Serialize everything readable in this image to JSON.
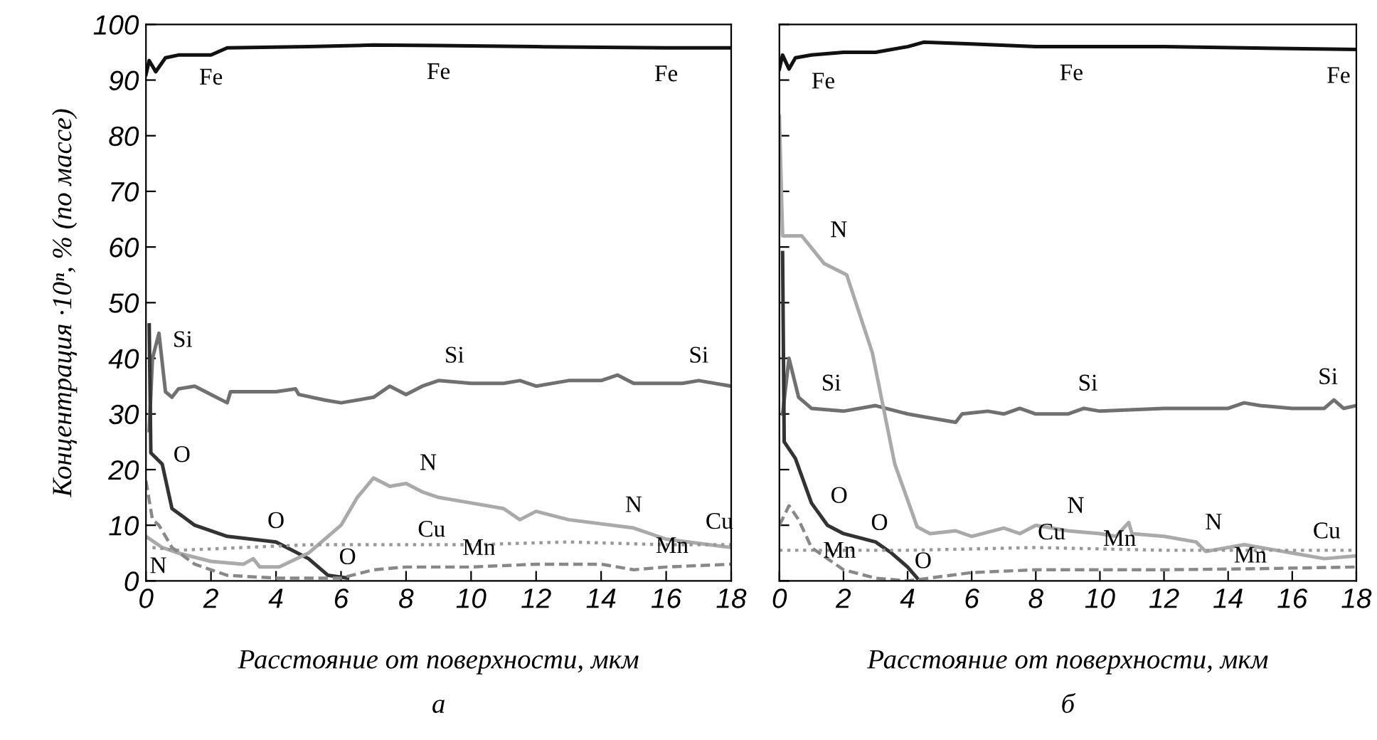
{
  "chart_data": [
    {
      "type": "line",
      "title": "а",
      "xlabel": "Расстояние от поверхности, мкм",
      "ylabel": "Концентрация ·10ⁿ, % (по массе)",
      "xlim": [
        0,
        18
      ],
      "ylim": [
        0,
        100
      ],
      "xticks": [
        0,
        2,
        4,
        6,
        8,
        10,
        12,
        14,
        16,
        18
      ],
      "yticks": [
        0,
        10,
        20,
        30,
        40,
        50,
        60,
        70,
        80,
        90,
        100
      ],
      "grid": false,
      "legend": false,
      "series": [
        {
          "color": "#111111",
          "line_style": "solid",
          "x": [
            0,
            0.1,
            0.3,
            0.6,
            1,
            2,
            2.5,
            5,
            7,
            9,
            12,
            16,
            18
          ],
          "values": [
            91,
            93.5,
            91.5,
            94,
            94.5,
            94.5,
            95.8,
            96,
            96.3,
            96.2,
            96,
            95.8,
            95.8
          ]
        },
        {
          "color": "#707070",
          "line_style": "solid",
          "x": [
            0.1,
            0.2,
            0.4,
            0.6,
            0.8,
            1,
            1.5,
            2,
            2.5,
            2.6,
            3,
            4,
            4.6,
            4.7,
            5.5,
            6,
            7,
            7.5,
            8,
            8.5,
            9,
            10,
            11,
            11.5,
            12,
            13,
            14,
            14.5,
            15,
            16.5,
            17,
            18
          ],
          "values": [
            27,
            40,
            44.5,
            34,
            33,
            34.5,
            35,
            33.5,
            32,
            34,
            34,
            34,
            34.5,
            33.5,
            32.5,
            32,
            33,
            35,
            33.5,
            35,
            36,
            35.5,
            35.5,
            36,
            35,
            36,
            36,
            37,
            35.5,
            35.5,
            36,
            35
          ]
        },
        {
          "color": "#333333",
          "line_style": "solid",
          "x": [
            0.1,
            0.15,
            0.5,
            0.8,
            1.5,
            2.5,
            4,
            5,
            5.6,
            6.2
          ],
          "values": [
            46,
            23,
            21,
            13,
            10,
            8,
            7,
            4,
            1,
            0.5
          ]
        },
        {
          "color": "#aaaaaa",
          "line_style": "solid",
          "x": [
            0,
            0.5,
            1,
            2,
            3,
            3.3,
            3.5,
            4.1,
            5,
            6,
            6.5,
            7,
            7.5,
            8,
            8.5,
            9,
            10,
            11,
            11.5,
            12,
            13,
            15,
            16,
            18
          ],
          "values": [
            8,
            6,
            5,
            3.5,
            3,
            4,
            2.5,
            2.5,
            5,
            10,
            15,
            18.5,
            17,
            17.5,
            16,
            15,
            14,
            13,
            11,
            12.5,
            11,
            9.5,
            7.5,
            6
          ]
        },
        {
          "color": "#999999",
          "line_style": "dotted",
          "x": [
            0.2,
            1,
            3,
            5,
            10,
            13,
            16,
            18
          ],
          "values": [
            6,
            5.5,
            6,
            6.5,
            6.5,
            7,
            6.5,
            6.5
          ]
        },
        {
          "color": "#888888",
          "line_style": "dashed",
          "x": [
            0,
            0.2,
            0.4,
            0.8,
            1.5,
            2.5,
            4,
            6,
            7,
            8,
            10,
            12,
            14,
            15,
            16,
            18
          ],
          "values": [
            18,
            11,
            10,
            6,
            3,
            1,
            0.5,
            0.5,
            2,
            2.5,
            2.5,
            3,
            3,
            2,
            2.5,
            3
          ]
        }
      ],
      "annotations": [
        {
          "text": "Fe",
          "x": 2,
          "y": 94.5
        },
        {
          "text": "Fe",
          "x": 9,
          "y": 96.2
        },
        {
          "text": "Fe",
          "x": 16,
          "y": 95.8
        },
        {
          "text": "Si",
          "x": 0.4,
          "y": 44.5
        },
        {
          "text": "Si",
          "x": 9,
          "y": 36
        },
        {
          "text": "Si",
          "x": 17,
          "y": 36
        },
        {
          "text": "O",
          "x": 0.5,
          "y": 21
        },
        {
          "text": "O",
          "x": 4,
          "y": 7
        },
        {
          "text": "O",
          "x": 6.2,
          "y": 0.5
        },
        {
          "text": "N",
          "x": 8.5,
          "y": 16
        },
        {
          "text": "N",
          "x": 15,
          "y": 9.5
        },
        {
          "text": "N",
          "x": 0.5,
          "y": 6
        },
        {
          "text": "Cu",
          "x": 10,
          "y": 6.5
        },
        {
          "text": "Cu",
          "x": 18,
          "y": 6.5
        },
        {
          "text": "Mn",
          "x": 10,
          "y": 2.5
        },
        {
          "text": "Mn",
          "x": 16,
          "y": 2.5
        }
      ]
    },
    {
      "type": "line",
      "title": "б",
      "xlabel": "Расстояние от поверхности, мкм",
      "xlim": [
        0,
        18
      ],
      "ylim": [
        0,
        100
      ],
      "xticks": [
        0,
        2,
        4,
        6,
        8,
        10,
        12,
        14,
        16,
        18
      ],
      "yticks": [
        {
          "value": 0,
          "label": null
        },
        {
          "value": 10,
          "label": null
        },
        {
          "value": 20,
          "label": null
        },
        {
          "value": 30,
          "label": null
        },
        {
          "value": 40,
          "label": null
        },
        {
          "value": 50,
          "label": null
        },
        {
          "value": 60,
          "label": null
        },
        {
          "value": 70,
          "label": null
        },
        {
          "value": 80,
          "label": null
        },
        {
          "value": 90,
          "label": null
        },
        {
          "value": 100,
          "label": null
        }
      ],
      "tick_labels": "x",
      "grid": false,
      "legend": false,
      "series": [
        {
          "color": "#111111",
          "line_style": "solid",
          "x": [
            0,
            0.1,
            0.3,
            0.5,
            1,
            2,
            3,
            4,
            4.5,
            6,
            8,
            12,
            18
          ],
          "values": [
            92,
            94.5,
            92,
            94,
            94.5,
            95,
            95,
            96,
            96.8,
            96.5,
            96,
            96,
            95.5
          ]
        },
        {
          "color": "#707070",
          "line_style": "solid",
          "x": [
            0.1,
            0.3,
            0.6,
            1,
            2,
            3,
            4,
            4.5,
            5.5,
            5.7,
            6.5,
            7,
            7.5,
            8,
            9,
            9.5,
            10,
            12,
            14,
            14.5,
            15,
            16,
            17,
            17.3,
            17.6,
            18
          ],
          "values": [
            30,
            40,
            33,
            31,
            30.5,
            31.5,
            30,
            29.5,
            28.5,
            30,
            30.5,
            30,
            31,
            30,
            30,
            31,
            30.5,
            31,
            31,
            32,
            31.5,
            31,
            31,
            32.5,
            31,
            31.5
          ]
        },
        {
          "color": "#333333",
          "line_style": "solid",
          "x": [
            0.1,
            0.15,
            0.5,
            1,
            1.5,
            2,
            3,
            3.5,
            4,
            4.3
          ],
          "values": [
            59,
            25,
            22,
            14,
            10,
            8.5,
            7,
            5,
            2.5,
            0.5
          ]
        },
        {
          "color": "#aaaaaa",
          "line_style": "solid",
          "x": [
            0,
            0.1,
            0.7,
            1.4,
            2.1,
            2.9,
            3.6,
            4.3,
            4.7,
            5.5,
            6,
            7,
            7.5,
            8,
            9,
            10,
            10.5,
            10.9,
            11,
            12,
            13,
            13.3,
            14.5,
            16,
            17,
            18
          ],
          "values": [
            83.5,
            62,
            62,
            57,
            55,
            41,
            21,
            9.7,
            8.5,
            9,
            8,
            9.5,
            8.5,
            10,
            9,
            8.5,
            8,
            10.5,
            8.5,
            8,
            7,
            5.3,
            6.5,
            5,
            4,
            4.5
          ]
        },
        {
          "color": "#999999",
          "line_style": "dotted",
          "x": [
            0,
            4,
            8,
            12,
            18
          ],
          "values": [
            5.5,
            5.5,
            6,
            5.5,
            5.5
          ]
        },
        {
          "color": "#888888",
          "line_style": "dashed",
          "x": [
            0,
            0.3,
            0.6,
            1,
            2,
            3,
            4,
            6,
            8,
            10,
            12,
            15,
            18
          ],
          "values": [
            10,
            13.5,
            11,
            6,
            2,
            0.5,
            0,
            1.5,
            2,
            2,
            2,
            2.2,
            2.5
          ]
        }
      ],
      "annotations": [
        {
          "text": "Fe",
          "x": 1,
          "y": 94.5
        },
        {
          "text": "Fe",
          "x": 8,
          "y": 96
        },
        {
          "text": "Fe",
          "x": 18,
          "y": 95.5
        },
        {
          "text": "N",
          "x": 2.1,
          "y": 55
        },
        {
          "text": "Si",
          "x": 1,
          "y": 31
        },
        {
          "text": "Si",
          "x": 9.5,
          "y": 31
        },
        {
          "text": "Si",
          "x": 17.3,
          "y": 32.5
        },
        {
          "text": "O",
          "x": 1,
          "y": 14
        },
        {
          "text": "O",
          "x": 3,
          "y": 7
        },
        {
          "text": "O",
          "x": 4.3,
          "y": 0.5
        },
        {
          "text": "N",
          "x": 9,
          "y": 9
        },
        {
          "text": "N",
          "x": 13.3,
          "y": 5.3
        },
        {
          "text": "Cu",
          "x": 8,
          "y": 6
        },
        {
          "text": "Cu",
          "x": 18,
          "y": 5.5
        },
        {
          "text": "Mn",
          "x": 2,
          "y": 2
        },
        {
          "text": "Mn",
          "x": 10,
          "y": 2
        },
        {
          "text": "Mn",
          "x": 15,
          "y": 2.2
        }
      ]
    }
  ]
}
